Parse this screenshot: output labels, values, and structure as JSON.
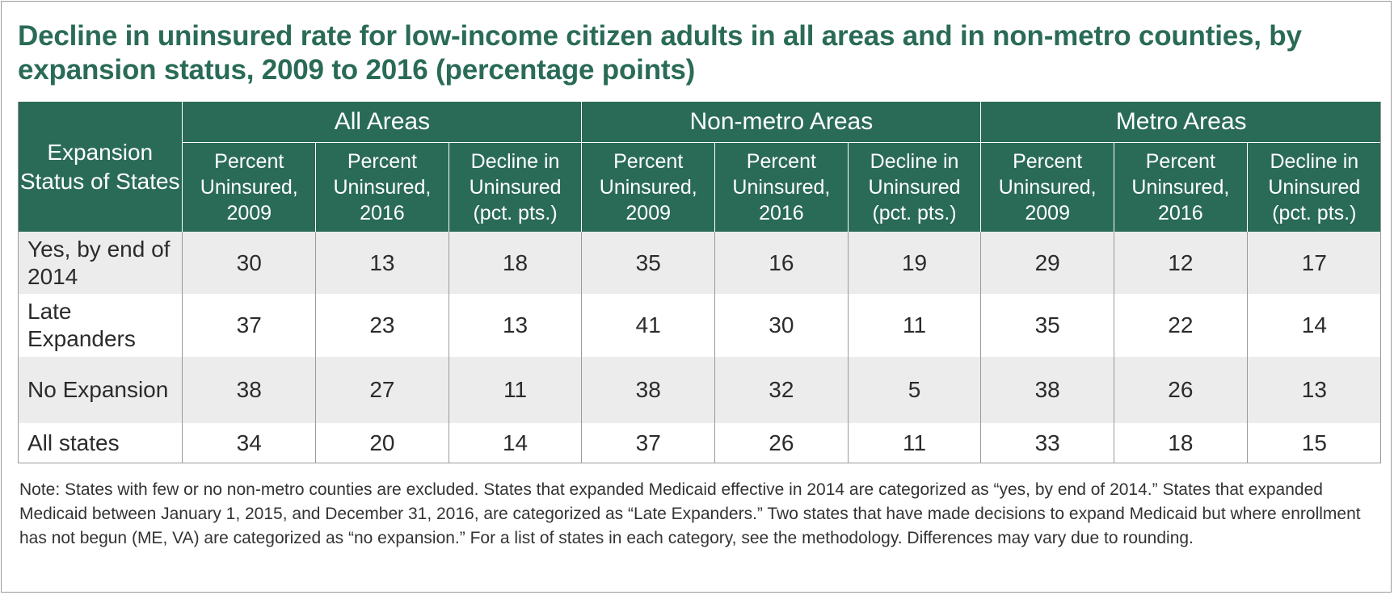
{
  "title": "Decline in uninsured rate for low-income citizen adults in all areas and in non-metro counties, by expansion status, 2009 to 2016 (percentage points)",
  "chart_data": {
    "type": "table",
    "row_header": "Expansion Status of States",
    "groups": [
      "All Areas",
      "Non-metro Areas",
      "Metro Areas"
    ],
    "columns": [
      "Percent Uninsured, 2009",
      "Percent Uninsured, 2016",
      "Decline in Uninsured (pct. pts.)"
    ],
    "rows": [
      {
        "label": "Yes, by end of 2014",
        "values": [
          "30",
          "13",
          "18",
          "35",
          "16",
          "19",
          "29",
          "12",
          "17"
        ]
      },
      {
        "label": "Late Expanders",
        "values": [
          "37",
          "23",
          "13",
          "41",
          "30",
          "11",
          "35",
          "22",
          "14"
        ]
      },
      {
        "label": "No Expansion",
        "values": [
          "38",
          "27",
          "11",
          "38",
          "32",
          "5",
          "38",
          "26",
          "13"
        ]
      },
      {
        "label": "All states",
        "values": [
          "34",
          "20",
          "14",
          "37",
          "26",
          "11",
          "33",
          "18",
          "15"
        ]
      }
    ]
  },
  "note": "Note: States with few or no non-metro counties are excluded. States that expanded Medicaid effective in 2014 are categorized as “yes, by end of 2014.” States that expanded Medicaid between January 1, 2015, and December 31, 2016, are categorized as “Late Expanders.” Two states that have made decisions to expand Medicaid but where enrollment has not begun (ME, VA) are categorized as “no expansion.” For a list of states in each category, see the methodology. Differences may vary due to rounding.",
  "colors": {
    "header_bg": "#2a6b57",
    "title_text": "#2a6b57",
    "row_shade": "#ececec",
    "border": "#9a9a9a"
  }
}
